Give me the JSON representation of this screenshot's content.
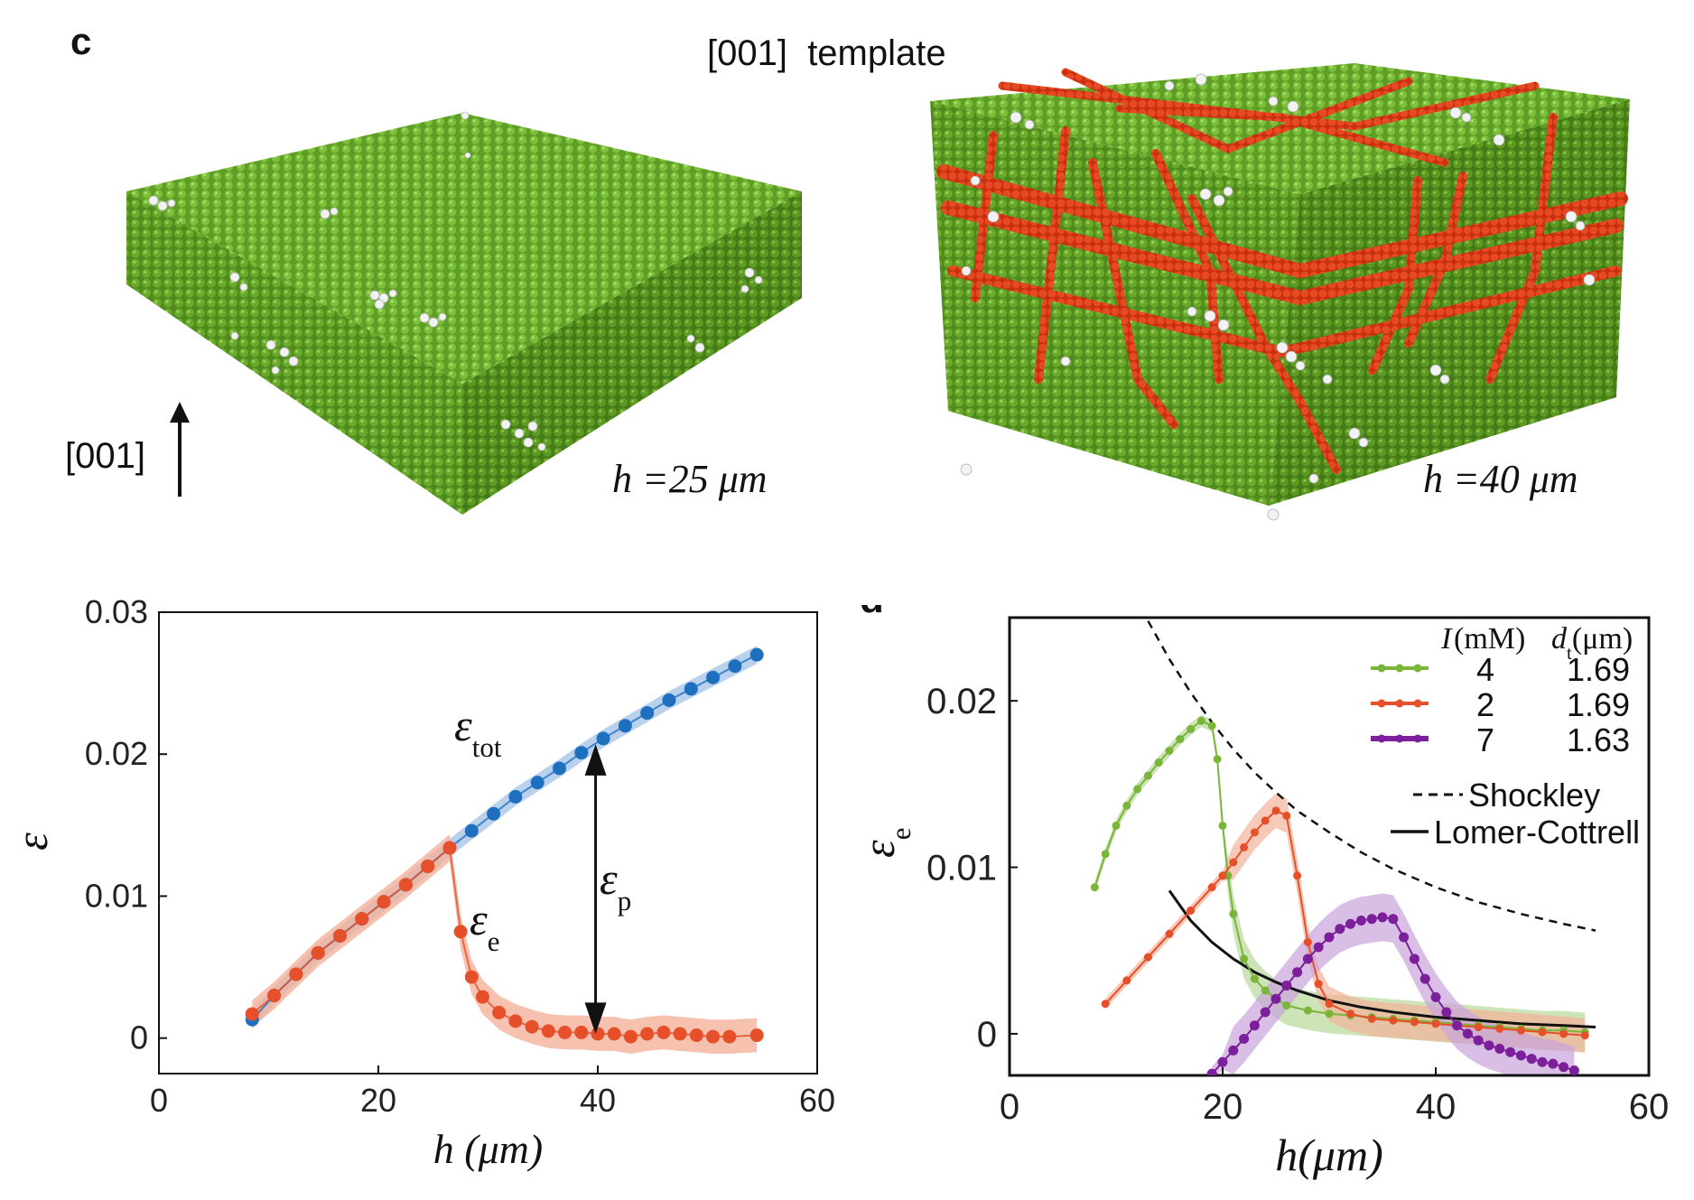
{
  "panel_label": "c",
  "title": "[001]  template",
  "panel_d_label": "d",
  "axis_arrow_label": "[001]",
  "left_block_caption": "h =25 μm",
  "right_block_caption": "h =40 μm",
  "colors": {
    "fcc_atom": "#6aaa2a",
    "defect_atom": "#ececec",
    "stacking_fault_atom": "#e0421c",
    "blue_series": "#1f6fbf",
    "orange_series": "#e5502a",
    "green_series": "#7ab53a",
    "purple_series": "#7b1f9a"
  },
  "chart_data": [
    {
      "type": "scatter",
      "xlabel": "h (μm)",
      "ylabel": "ε",
      "xlim": [
        0,
        60
      ],
      "ylim": [
        -0.0025,
        0.03
      ],
      "xticks": [
        0,
        20,
        40,
        60
      ],
      "yticks": [
        0,
        0.01,
        0.02,
        0.03
      ],
      "ytick_labels": [
        "0",
        "0.01",
        "0.02",
        "0.03"
      ],
      "grid": false,
      "annotations": [
        "ε_tot",
        "ε_e",
        "ε_p"
      ],
      "series": [
        {
          "name": "ε_tot",
          "color": "#1f6fbf",
          "x": [
            8.5,
            10.5,
            12.5,
            14.5,
            16.5,
            18.5,
            20.5,
            22.5,
            24.5,
            26.5,
            28.5,
            30.5,
            32.5,
            34.5,
            36.5,
            38.5,
            40.5,
            42.5,
            44.5,
            46.5,
            48.5,
            50.5,
            52.5,
            54.5
          ],
          "y": [
            0.0013,
            0.003,
            0.0045,
            0.006,
            0.0072,
            0.0084,
            0.0096,
            0.0108,
            0.0121,
            0.0134,
            0.0146,
            0.0158,
            0.017,
            0.018,
            0.019,
            0.0201,
            0.0211,
            0.022,
            0.0229,
            0.0238,
            0.0246,
            0.0254,
            0.0262,
            0.027
          ],
          "band": 0.0008
        },
        {
          "name": "ε_e",
          "color": "#e5502a",
          "x": [
            8.5,
            10.5,
            12.5,
            14.5,
            16.5,
            18.5,
            20.5,
            22.5,
            24.5,
            26.5,
            27.5,
            28.5,
            29.5,
            31,
            32.5,
            34,
            35.5,
            37,
            38.5,
            40,
            41.5,
            43,
            44.5,
            46,
            47.5,
            49,
            50.5,
            52,
            54.5
          ],
          "y": [
            0.0017,
            0.003,
            0.0045,
            0.006,
            0.0072,
            0.0084,
            0.0096,
            0.0108,
            0.0121,
            0.0134,
            0.0075,
            0.0043,
            0.0029,
            0.0018,
            0.0012,
            0.0008,
            0.0005,
            0.0004,
            0.0004,
            0.0003,
            0.0003,
            0.0001,
            0.0003,
            0.0004,
            0.0003,
            0.0002,
            0.0001,
            0.0001,
            0.0002
          ],
          "band": 0.0012
        }
      ]
    },
    {
      "type": "line",
      "xlabel": "h(μm)",
      "ylabel": "ε_e",
      "xlim": [
        0,
        60
      ],
      "ylim": [
        -0.0025,
        0.025
      ],
      "xticks": [
        0,
        20,
        40,
        60
      ],
      "yticks": [
        0,
        0.01,
        0.02
      ],
      "ytick_labels": [
        "0",
        "0.01",
        "0.02"
      ],
      "grid": false,
      "legend_position": "top-right",
      "legend_headers": [
        "I(mM)",
        "d_t(μm)"
      ],
      "series": [
        {
          "name": "I = 4, d_t = 1.69",
          "legend_i": "4",
          "legend_dt": "1.69",
          "color": "#7ab53a",
          "x": [
            8,
            9,
            10,
            11,
            12,
            13,
            14,
            15,
            16,
            17,
            18,
            19,
            19.5,
            20,
            20.5,
            21,
            22,
            23,
            24,
            25,
            26,
            28,
            30,
            32,
            34,
            36,
            38,
            40,
            42,
            44,
            46,
            48,
            50,
            52,
            54
          ],
          "y": [
            0.0088,
            0.0108,
            0.0125,
            0.0137,
            0.0147,
            0.0155,
            0.0163,
            0.017,
            0.0177,
            0.0183,
            0.0188,
            0.0185,
            0.0165,
            0.0125,
            0.0095,
            0.0072,
            0.0045,
            0.0033,
            0.0026,
            0.0021,
            0.0017,
            0.0014,
            0.0012,
            0.0011,
            0.001,
            0.0009,
            0.0008,
            0.0007,
            0.0006,
            0.0005,
            0.0004,
            0.0003,
            0.0002,
            0.0002,
            0.0001
          ]
        },
        {
          "name": "I = 2, d_t = 1.69",
          "legend_i": "2",
          "legend_dt": "1.69",
          "color": "#e5502a",
          "x": [
            9,
            11,
            13,
            15,
            17,
            19,
            20,
            21,
            22,
            23,
            24,
            25,
            26,
            27,
            28,
            29,
            30,
            32,
            34,
            36,
            38,
            40,
            42,
            44,
            46,
            48,
            50,
            52,
            54
          ],
          "y": [
            0.0018,
            0.0032,
            0.0046,
            0.006,
            0.0074,
            0.0088,
            0.0095,
            0.0103,
            0.0112,
            0.0121,
            0.0128,
            0.0134,
            0.0131,
            0.0095,
            0.0055,
            0.003,
            0.0018,
            0.0012,
            0.0009,
            0.0008,
            0.0007,
            0.0006,
            0.0005,
            0.0004,
            0.0003,
            0.0002,
            0.0001,
            0.0,
            -0.0001
          ]
        },
        {
          "name": "I = 7, d_t = 1.63",
          "legend_i": "7",
          "legend_dt": "1.63",
          "color": "#7b1f9a",
          "x": [
            19,
            20,
            21,
            22,
            23,
            24,
            25,
            26,
            27,
            28,
            29,
            30,
            31,
            32,
            33,
            34,
            35,
            36,
            37,
            38,
            39,
            40,
            41,
            42,
            43,
            44,
            45,
            46,
            47,
            48,
            49,
            50,
            51,
            52,
            53
          ],
          "y": [
            -0.0024,
            -0.0017,
            -0.001,
            -0.0003,
            0.0005,
            0.0013,
            0.0021,
            0.0029,
            0.0037,
            0.0045,
            0.0052,
            0.0058,
            0.0063,
            0.0066,
            0.0068,
            0.0069,
            0.007,
            0.0069,
            0.0058,
            0.0045,
            0.0033,
            0.0022,
            0.0013,
            0.0005,
            0.0,
            -0.0004,
            -0.0007,
            -0.0009,
            -0.0011,
            -0.0013,
            -0.0015,
            -0.0017,
            -0.0018,
            -0.002,
            -0.0022
          ]
        }
      ],
      "reference_curves": [
        {
          "name": "Shockley",
          "style": "dashed",
          "color": "#111111",
          "x": [
            13,
            15,
            17,
            19,
            21,
            23,
            25,
            27,
            30,
            33,
            36,
            40,
            44,
            48,
            52,
            55
          ],
          "y": [
            0.0248,
            0.0225,
            0.0205,
            0.0187,
            0.0171,
            0.0157,
            0.0145,
            0.0134,
            0.0121,
            0.0109,
            0.0099,
            0.0088,
            0.0079,
            0.0072,
            0.0066,
            0.0062
          ]
        },
        {
          "name": "Lomer-Cottrell",
          "style": "solid",
          "color": "#111111",
          "x": [
            15,
            17,
            19,
            21,
            23,
            25,
            27,
            30,
            33,
            36,
            40,
            44,
            48,
            52,
            55
          ],
          "y": [
            0.0086,
            0.0068,
            0.0055,
            0.0045,
            0.0037,
            0.0031,
            0.0026,
            0.002,
            0.0016,
            0.0013,
            0.001,
            0.0008,
            0.0006,
            0.0005,
            0.0004
          ]
        }
      ]
    }
  ]
}
